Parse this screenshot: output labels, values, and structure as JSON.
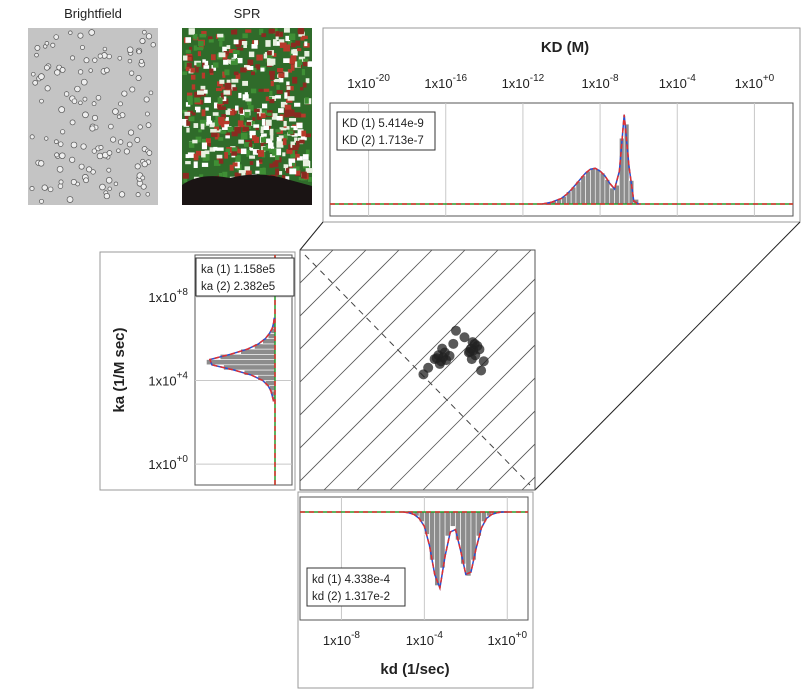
{
  "images": [
    {
      "label": "Brightfield"
    },
    {
      "label": "SPR"
    }
  ],
  "chart_data": [
    {
      "type": "histogram",
      "orientation": "vertical",
      "title": "KD (M)",
      "xlog": true,
      "xlim": [
        1e-22,
        100.0
      ],
      "xticks": [
        {
          "value": 1e-20,
          "label": "1x10",
          "sup": "-20"
        },
        {
          "value": 1e-16,
          "label": "1x10",
          "sup": "-16"
        },
        {
          "value": 1e-12,
          "label": "1x10",
          "sup": "-12"
        },
        {
          "value": 1e-08,
          "label": "1x10",
          "sup": "-8"
        },
        {
          "value": 0.0001,
          "label": "1x10",
          "sup": "-4"
        },
        {
          "value": 1,
          "label": "1x10",
          "sup": "+0"
        }
      ],
      "ylim": [
        0,
        100
      ],
      "grid": true,
      "bar_color": "#8c8c8c",
      "bins": [
        1e-11,
        1.778e-11,
        3.162e-11,
        5.623e-11,
        1e-10,
        1.778e-10,
        3.162e-10,
        5.623e-10,
        1e-09,
        1.778e-09,
        3.162e-09,
        5.623e-09,
        1e-08,
        1.778e-08,
        3.162e-08,
        5.623e-08,
        1e-07,
        1.778e-07,
        3.162e-07,
        5.623e-07,
        1e-06
      ],
      "counts": [
        1,
        2,
        3,
        5,
        8,
        13,
        18,
        24,
        30,
        35,
        38,
        37,
        33,
        26,
        17,
        20,
        70,
        85,
        25,
        5
      ],
      "fit": {
        "color": "#e03030",
        "values": [
          0,
          1,
          2,
          4,
          6,
          10,
          15,
          21,
          27,
          33,
          37,
          38,
          35,
          30,
          22,
          16,
          35,
          95,
          40,
          3,
          0
        ]
      },
      "annotations": [
        "KD (1) 5.414e-9",
        "KD (2) 1.713e-7"
      ]
    },
    {
      "type": "histogram",
      "orientation": "horizontal",
      "ylabel": "ka (1/M sec)",
      "ylog": true,
      "ylim": [
        0.1,
        10000000000.0
      ],
      "yticks": [
        {
          "value": 1,
          "label": "1x10",
          "sup": "+0"
        },
        {
          "value": 10000.0,
          "label": "1x10",
          "sup": "+4"
        },
        {
          "value": 100000000.0,
          "label": "1x10",
          "sup": "+8"
        }
      ],
      "xlim": [
        0,
        105
      ],
      "grid": true,
      "bar_color": "#8c8c8c",
      "bins": [
        1000.0,
        1778.0,
        3162.0,
        5623.0,
        10000.0,
        17780.0,
        31620.0,
        56230.0,
        100000.0,
        177800.0,
        316200.0,
        562300.0,
        1000000.0,
        1778000.0,
        3162000.0,
        5623000.0,
        10000000.0
      ],
      "counts": [
        3,
        5,
        8,
        14,
        25,
        45,
        75,
        100,
        80,
        50,
        30,
        18,
        10,
        6,
        3,
        2
      ],
      "fit": {
        "color": "#e03030",
        "values": [
          2,
          4,
          6,
          10,
          18,
          34,
          60,
          92,
          95,
          65,
          40,
          24,
          14,
          8,
          4,
          2,
          1
        ]
      },
      "annotations": [
        "ka (1) 1.158e5",
        "ka (2) 2.382e5"
      ]
    },
    {
      "type": "scatter",
      "xlog": true,
      "ylog": true,
      "xlim": [
        1e-10,
        10.0
      ],
      "ylim": [
        0.1,
        10000000000.0
      ],
      "color": "#222222",
      "x": [
        0.0002,
        0.0003,
        0.0004,
        0.0005,
        0.0006,
        0.00035,
        0.00045,
        0.00025,
        0.0007,
        0.001,
        0.008,
        0.01,
        0.013,
        0.016,
        0.02,
        0.011,
        0.015,
        0.009,
        0.025,
        0.012,
        0.0001,
        0.002,
        0.005,
        0.03,
        6e-05,
        0.04,
        0.0015
      ],
      "y": [
        100000.0,
        150000.0,
        80000.0,
        120000.0,
        200000.0,
        60000.0,
        300000.0,
        110000.0,
        90000.0,
        140000.0,
        200000.0,
        300000.0,
        250000.0,
        150000.0,
        400000.0,
        100000.0,
        500000.0,
        220000.0,
        280000.0,
        600000.0,
        40000.0,
        2000000.0,
        1000000.0,
        30000.0,
        20000.0,
        80000.0,
        500000.0
      ]
    },
    {
      "type": "histogram",
      "orientation": "vertical",
      "invert_y": true,
      "xlabel": "kd (1/sec)",
      "xlog": true,
      "xlim": [
        1e-10,
        10.0
      ],
      "xticks": [
        {
          "value": 1e-08,
          "label": "1x10",
          "sup": "-8"
        },
        {
          "value": 0.0001,
          "label": "1x10",
          "sup": "-4"
        },
        {
          "value": 1,
          "label": "1x10",
          "sup": "+0"
        }
      ],
      "ylim": [
        0,
        100
      ],
      "grid": true,
      "bar_color": "#8c8c8c",
      "bins": [
        1e-05,
        1.778e-05,
        3.162e-05,
        5.623e-05,
        0.0001,
        0.0001778,
        0.0003162,
        0.0005623,
        0.001,
        0.001778,
        0.003162,
        0.005623,
        0.01,
        0.01778,
        0.03162,
        0.05623,
        0.1,
        0.1778,
        0.3162,
        0.5623,
        1
      ],
      "counts": [
        1,
        2,
        5,
        12,
        28,
        60,
        92,
        70,
        30,
        18,
        35,
        65,
        80,
        60,
        30,
        12,
        5,
        2,
        1,
        0
      ],
      "fit": {
        "color": "#e03030",
        "values": [
          0,
          1,
          3,
          8,
          18,
          42,
          78,
          95,
          55,
          25,
          22,
          48,
          78,
          75,
          45,
          20,
          8,
          3,
          1,
          0,
          0
        ]
      },
      "annotations": [
        "kd (1) 4.338e-4",
        "kd (2) 1.317e-2"
      ]
    }
  ]
}
